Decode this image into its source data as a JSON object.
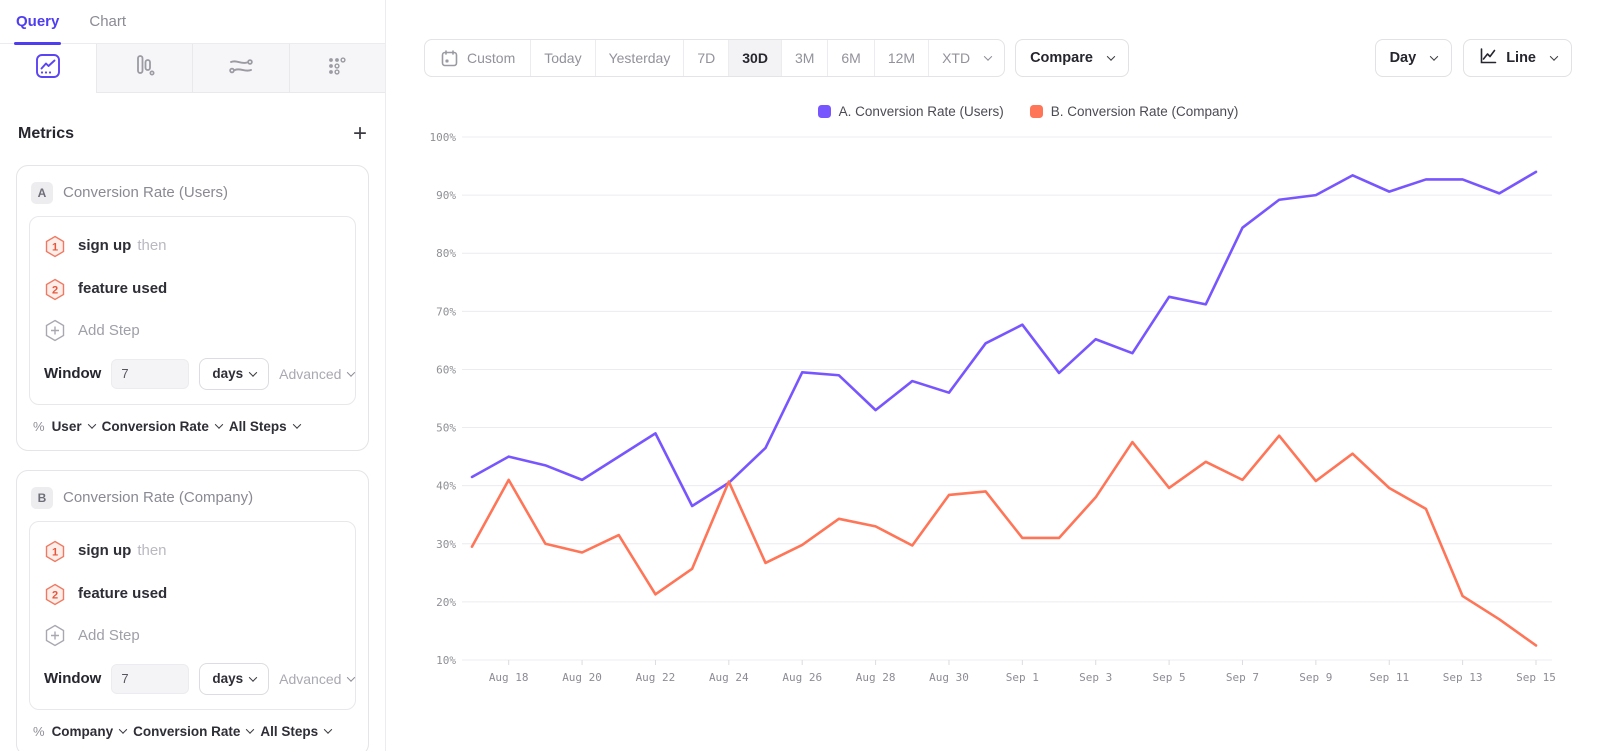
{
  "sidebar": {
    "tabs": [
      {
        "label": "Query",
        "active": true
      },
      {
        "label": "Chart",
        "active": false
      }
    ],
    "report_types": [
      {
        "icon": "insights-icon",
        "active": true
      },
      {
        "icon": "funnels-icon",
        "active": false
      },
      {
        "icon": "flows-icon",
        "active": false
      },
      {
        "icon": "retention-icon",
        "active": false
      }
    ],
    "metrics": {
      "title": "Metrics",
      "add_label": "+",
      "cards": [
        {
          "letter": "A",
          "title": "Conversion Rate (Users)",
          "steps": [
            {
              "num": "1",
              "name": "sign up",
              "suffix": "then"
            },
            {
              "num": "2",
              "name": "feature used",
              "suffix": ""
            }
          ],
          "add_step_label": "Add Step",
          "window_label": "Window",
          "window_value": "7",
          "window_unit": "days",
          "advanced_label": "Advanced",
          "footer": {
            "prefix": "%",
            "entity": "User",
            "metric": "Conversion Rate",
            "steps": "All Steps"
          }
        },
        {
          "letter": "B",
          "title": "Conversion Rate (Company)",
          "steps": [
            {
              "num": "1",
              "name": "sign up",
              "suffix": "then"
            },
            {
              "num": "2",
              "name": "feature used",
              "suffix": ""
            }
          ],
          "add_step_label": "Add Step",
          "window_label": "Window",
          "window_value": "7",
          "window_unit": "days",
          "advanced_label": "Advanced",
          "footer": {
            "prefix": "%",
            "entity": "Company",
            "metric": "Conversion Rate",
            "steps": "All Steps"
          }
        }
      ]
    }
  },
  "toolbar": {
    "date_ranges": [
      "Custom",
      "Today",
      "Yesterday",
      "7D",
      "30D",
      "3M",
      "6M",
      "12M",
      "XTD"
    ],
    "selected_range": "30D",
    "compare_label": "Compare",
    "granularity_label": "Day",
    "chart_type_label": "Line"
  },
  "chart_data": {
    "type": "line",
    "x": [
      "Aug 17",
      "Aug 18",
      "Aug 19",
      "Aug 20",
      "Aug 21",
      "Aug 22",
      "Aug 23",
      "Aug 24",
      "Aug 25",
      "Aug 26",
      "Aug 27",
      "Aug 28",
      "Aug 29",
      "Aug 30",
      "Aug 31",
      "Sep 1",
      "Sep 2",
      "Sep 3",
      "Sep 4",
      "Sep 5",
      "Sep 6",
      "Sep 7",
      "Sep 8",
      "Sep 9",
      "Sep 10",
      "Sep 11",
      "Sep 12",
      "Sep 13",
      "Sep 14",
      "Sep 15"
    ],
    "x_tick_start": 1,
    "x_tick_every": 2,
    "series": [
      {
        "name": "A. Conversion Rate (Users)",
        "color": "#7856FF",
        "values": [
          41.5,
          45,
          43.5,
          41,
          45,
          49,
          36.5,
          40.5,
          46.5,
          59.5,
          59,
          53,
          58,
          56,
          64.5,
          67.7,
          59.4,
          65.2,
          62.8,
          72.5,
          71.2,
          84.4,
          89.2,
          90,
          93.4,
          90.6,
          92.7,
          92.7,
          90.3,
          94
        ]
      },
      {
        "name": "B. Conversion Rate (Company)",
        "color": "#FF7557",
        "values": [
          29.5,
          41,
          30,
          28.5,
          31.5,
          21.3,
          25.7,
          40.7,
          26.7,
          29.8,
          34.3,
          33,
          29.7,
          38.4,
          39,
          31,
          31,
          38,
          47.5,
          39.6,
          44.1,
          41,
          48.6,
          40.8,
          45.5,
          39.6,
          36,
          21,
          17,
          12.5
        ]
      }
    ],
    "title": "",
    "xlabel": "",
    "ylabel": "",
    "ylim": [
      10,
      100
    ],
    "yticks": [
      10,
      20,
      30,
      40,
      50,
      60,
      70,
      80,
      90,
      100
    ],
    "ytick_suffix": "%",
    "grid": "horizontal",
    "legend_position": "top-center"
  }
}
